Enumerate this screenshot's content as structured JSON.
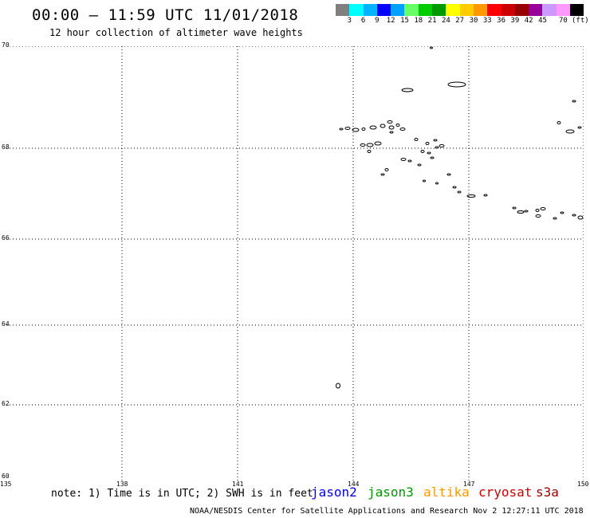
{
  "header": {
    "title": "00:00 – 11:59 UTC 11/01/2018",
    "subtitle": "12 hour collection of altimeter wave heights"
  },
  "colorbar": {
    "colors": [
      "#7f7f7f",
      "#00ffff",
      "#00b4ff",
      "#0000ff",
      "#00a0ff",
      "#66ff66",
      "#00cc00",
      "#009900",
      "#ffff00",
      "#ffcc00",
      "#ff9900",
      "#ff0000",
      "#cc0000",
      "#990000",
      "#990099",
      "#cc99ff",
      "#ff99ff",
      "#000000"
    ],
    "labels": [
      "3",
      "6",
      "9",
      "12",
      "15",
      "18",
      "21",
      "24",
      "27",
      "30",
      "33",
      "36",
      "39",
      "42",
      "45",
      "70"
    ],
    "unit": "(ft)"
  },
  "axes": {
    "lat_ticks": [
      "70",
      "68",
      "66",
      "64",
      "62",
      "60"
    ],
    "lon_ticks": [
      "135",
      "138",
      "141",
      "144",
      "147",
      "150"
    ]
  },
  "footer": {
    "note": "note: 1) Time is in UTC; 2) SWH is in feet",
    "satellites": [
      {
        "name": "jason2",
        "color": "#0000ff"
      },
      {
        "name": "jason3",
        "color": "#009900"
      },
      {
        "name": "altika",
        "color": "#ff9900"
      },
      {
        "name": "cryosat",
        "color": "#cc0000"
      },
      {
        "name": "s3a",
        "color": "#990000"
      }
    ],
    "credit": "NOAA/NESDIS Center for Satellite Applications and Research   Nov  2 12:27:11 UTC 2018"
  }
}
